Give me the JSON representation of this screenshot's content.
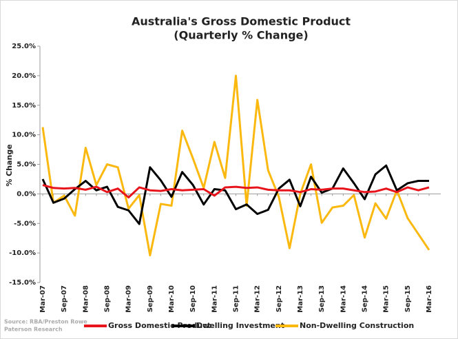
{
  "chart_data": {
    "type": "line",
    "title": "Australia's Gross Domestic Product",
    "subtitle": "(Quarterly % Change)",
    "y_label": "% Change",
    "source": [
      "Source: RBA/Preston Rowe",
      "Paterson Research"
    ],
    "categories": [
      "Mar-07",
      null,
      "Sep-07",
      null,
      "Mar-08",
      null,
      "Sep-08",
      null,
      "Mar-09",
      null,
      "Sep-09",
      null,
      "Mar-10",
      null,
      "Sep-10",
      null,
      "Mar-11",
      null,
      "Sep-11",
      null,
      "Mar-12",
      null,
      "Sep-12",
      null,
      "Mar-13",
      null,
      "Sep-13",
      null,
      "Mar-14",
      null,
      "Sep-14",
      null,
      "Mar-15",
      null,
      "Sep-15",
      null,
      "Mar-16"
    ],
    "series": [
      {
        "name": "Gross Domestic Product",
        "color": "#e8141b",
        "values": [
          1.5,
          1.0,
          0.9,
          1.0,
          0.7,
          1.2,
          0.3,
          0.9,
          -0.6,
          1.1,
          0.6,
          0.5,
          0.8,
          0.6,
          0.7,
          0.8,
          -0.3,
          1.1,
          1.2,
          1.0,
          1.1,
          0.7,
          0.6,
          0.6,
          0.3,
          0.8,
          0.7,
          0.9,
          0.9,
          0.6,
          0.3,
          0.4,
          0.9,
          0.3,
          1.1,
          0.6,
          1.1
        ]
      },
      {
        "name": "Dwelling Investment",
        "color": "#000000",
        "values": [
          2.5,
          -1.5,
          -0.8,
          0.8,
          2.2,
          0.6,
          1.2,
          -2.2,
          -2.8,
          -5.1,
          4.5,
          2.3,
          -0.5,
          3.7,
          1.5,
          -1.8,
          0.8,
          0.6,
          -2.6,
          -1.8,
          -3.4,
          -2.7,
          0.9,
          2.4,
          -2.1,
          2.9,
          0.2,
          0.9,
          4.3,
          1.8,
          -0.9,
          3.3,
          4.8,
          0.6,
          1.8,
          2.2,
          2.2
        ]
      },
      {
        "name": "Non-Dwelling Construction",
        "color": "#fbb80f",
        "values": [
          11.3,
          -1.5,
          -0.3,
          -3.7,
          7.8,
          1.5,
          5.0,
          4.5,
          -2.5,
          -0.2,
          -10.4,
          -1.7,
          -2.0,
          10.7,
          6.0,
          1.0,
          8.8,
          2.7,
          20.0,
          -2.0,
          15.9,
          4.0,
          -0.5,
          -9.2,
          0.0,
          5.0,
          -4.9,
          -2.3,
          -2.0,
          -0.2,
          -7.4,
          -1.6,
          -4.2,
          0.6,
          -4.1,
          -6.8,
          -9.5
        ]
      }
    ],
    "ylim": [
      -15,
      25
    ],
    "yticks": [
      {
        "value": -15,
        "label": "-15.0%"
      },
      {
        "value": -10,
        "label": "-10.0%"
      },
      {
        "value": -5,
        "label": "-5.0%"
      },
      {
        "value": 0,
        "label": "0.0%"
      },
      {
        "value": 5,
        "label": "5.0%"
      },
      {
        "value": 10,
        "label": "10.0%"
      },
      {
        "value": 15,
        "label": "15.0%"
      },
      {
        "value": 20,
        "label": "20.0%"
      },
      {
        "value": 25,
        "label": "25.0%"
      }
    ],
    "grid": false,
    "legend": "bottom"
  }
}
